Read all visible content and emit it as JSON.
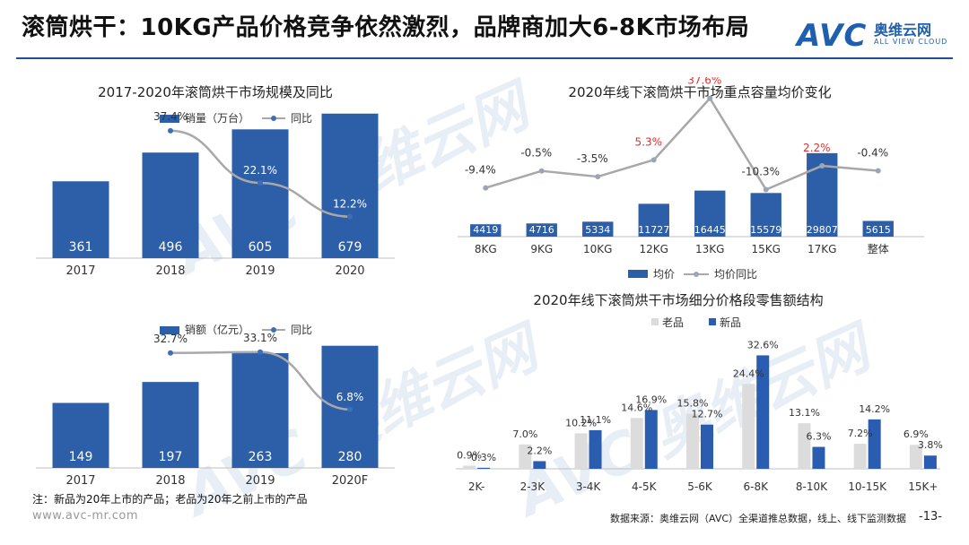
{
  "header": {
    "title": "滚筒烘干：10KG产品价格竞争依然激烈，品牌商加大6-8K市场布局",
    "logo_mark": "AVC",
    "logo_cn": "奥维云网",
    "logo_en": "ALL VIEW CLOUD"
  },
  "colors": {
    "bar_blue": "#2c5fa8",
    "line_gray": "#a8a8a8",
    "new_blue": "#2a5db0",
    "old_gray": "#dcdcdc",
    "accent_red": "#e03030"
  },
  "chart_data": [
    {
      "id": "volume",
      "type": "bar+line",
      "title": "2017-2020年滚筒烘干市场规模及同比",
      "categories": [
        "2017",
        "2018",
        "2019",
        "2020"
      ],
      "series": [
        {
          "name": "销量（万台）",
          "type": "bar",
          "values": [
            361,
            496,
            605,
            679
          ],
          "labels": [
            "361",
            "496",
            "605",
            "679"
          ]
        },
        {
          "name": "同比",
          "type": "line",
          "values": [
            null,
            37.4,
            22.1,
            12.2
          ],
          "labels": [
            "",
            "37.4%",
            "22.1%",
            "12.2%"
          ]
        }
      ],
      "ylim": [
        0,
        800
      ],
      "y2lim": [
        0,
        50
      ]
    },
    {
      "id": "revenue",
      "type": "bar+line",
      "title": "",
      "categories": [
        "2017",
        "2018",
        "2019",
        "2020F"
      ],
      "series": [
        {
          "name": "销额（亿元）",
          "type": "bar",
          "values": [
            149,
            197,
            263,
            280
          ],
          "labels": [
            "149",
            "197",
            "263",
            "280"
          ]
        },
        {
          "name": "同比",
          "type": "line",
          "values": [
            null,
            32.7,
            33.1,
            6.8
          ],
          "labels": [
            "",
            "32.7%",
            "33.1%",
            "6.8%"
          ]
        }
      ],
      "ylim": [
        0,
        300
      ],
      "y2lim": [
        -20,
        40
      ]
    },
    {
      "id": "capacity-price",
      "type": "bar+line",
      "title": "2020年线下滚筒烘干市场重点容量均价变化",
      "categories": [
        "8KG",
        "9KG",
        "10KG",
        "12KG",
        "13KG",
        "15KG",
        "17KG",
        "整体"
      ],
      "series": [
        {
          "name": "均价",
          "type": "bar",
          "values": [
            4419,
            4716,
            5334,
            11727,
            16445,
            15579,
            29807,
            5615
          ],
          "labels": [
            "4419",
            "4716",
            "5334",
            "11727",
            "16445",
            "15579",
            "29807",
            "5615"
          ]
        },
        {
          "name": "均价同比",
          "type": "line",
          "values": [
            -9.4,
            -0.5,
            -3.5,
            5.3,
            37.6,
            -10.3,
            2.2,
            -0.4
          ],
          "labels": [
            "-9.4%",
            "-0.5%",
            "-3.5%",
            "5.3%",
            "37.6%",
            "-10.3%",
            "2.2%",
            "-0.4%"
          ],
          "highlight": [
            false,
            false,
            false,
            true,
            true,
            false,
            true,
            false
          ]
        }
      ],
      "ylim": [
        0,
        32000
      ],
      "y2lim": [
        -35,
        45
      ]
    },
    {
      "id": "price-segment",
      "type": "bar",
      "title": "2020年线下滚筒烘干市场细分价格段零售额结构",
      "categories": [
        "2K-",
        "2-3K",
        "3-4K",
        "4-5K",
        "5-6K",
        "6-8K",
        "8-10K",
        "10-15K",
        "15K+"
      ],
      "series": [
        {
          "name": "老品",
          "values": [
            0.9,
            7.0,
            10.2,
            14.6,
            15.8,
            24.4,
            13.1,
            7.2,
            6.9
          ],
          "labels": [
            "0.9%",
            "7.0%",
            "10.2%",
            "14.6%",
            "15.8%",
            "24.4%",
            "13.1%",
            "7.2%",
            "6.9%"
          ]
        },
        {
          "name": "新品",
          "values": [
            0.3,
            2.2,
            11.1,
            16.9,
            12.7,
            32.6,
            6.3,
            14.2,
            3.8
          ],
          "labels": [
            "0.3%",
            "2.2%",
            "11.1%",
            "16.9%",
            "12.7%",
            "32.6%",
            "6.3%",
            "14.2%",
            "3.8%"
          ]
        }
      ],
      "ylim": [
        0,
        34
      ]
    }
  ],
  "footer": {
    "note": "注：新品为20年上市的产品；老品为20年之前上市的产品",
    "site": "www.avc-mr.com",
    "source": "数据来源：奥维云网（AVC）全渠道推总数据，线上、线下监测数据",
    "page": "-13-"
  }
}
